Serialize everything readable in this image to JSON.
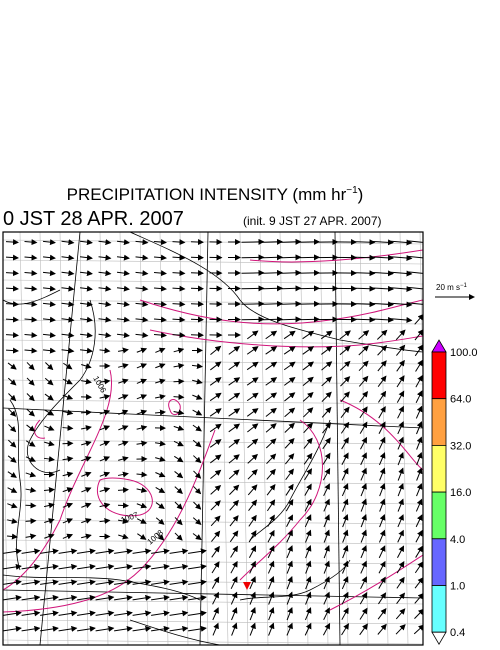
{
  "header": {
    "title": "PRECIPITATION INTENSITY (mm hr",
    "title_exponent": "−1",
    "title_close": ")",
    "valid_time": "0 JST 28 APR. 2007",
    "init_time": "(init. 9 JST 27 APR. 2007)"
  },
  "vector_legend": {
    "label": "20 m s",
    "exponent": "−1"
  },
  "colorbar": {
    "labels": [
      "100.0",
      "64.0",
      "32.0",
      "16.0",
      "4.0",
      "1.0",
      "0.4"
    ],
    "colors": [
      "#cc00ff",
      "#ff0000",
      "#ffa040",
      "#ffff66",
      "#66ff66",
      "#6666ff",
      "#66ffff",
      "#ffffff"
    ]
  },
  "contour_labels": [
    "1006",
    "1007",
    "1008"
  ]
}
